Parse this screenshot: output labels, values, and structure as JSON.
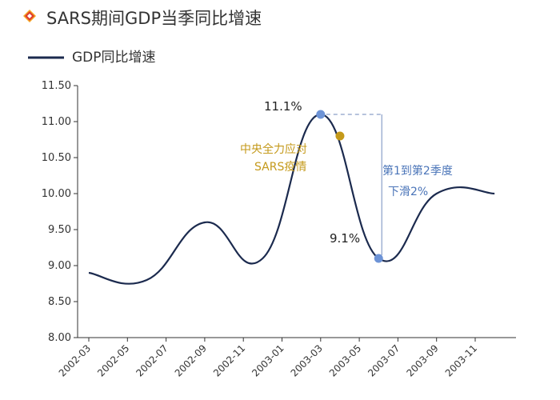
{
  "header": {
    "title": "SARS期间GDP当季同比增速",
    "legend_label": "GDP同比增速"
  },
  "annotations": {
    "peak_label": "11.1%",
    "trough_label": "9.1%",
    "event_line1": "中央全力应对",
    "event_line2": "SARS疫情",
    "decline_line1": "第1到第2季度",
    "decline_line2": "下滑2%"
  },
  "colors": {
    "series": "#1b2a4e",
    "marker_blue": "#6d93d6",
    "marker_gold": "#c4991a",
    "annotation_blue": "#4a74b8",
    "logo_red": "#e03c2d",
    "logo_orange": "#f5a623"
  },
  "chart_data": {
    "type": "line",
    "title": "SARS期间GDP当季同比增速",
    "series": [
      {
        "name": "GDP同比增速",
        "x": [
          "2002-03",
          "2002-06",
          "2002-09",
          "2002-12",
          "2003-03",
          "2003-06",
          "2003-09",
          "2003-12"
        ],
        "values": [
          8.9,
          8.8,
          9.6,
          9.1,
          11.1,
          9.1,
          10.0,
          10.0
        ]
      }
    ],
    "x_ticks": [
      "2002-03",
      "2002-05",
      "2002-07",
      "2002-09",
      "2002-11",
      "2003-01",
      "2003-03",
      "2003-05",
      "2003-07",
      "2003-09",
      "2003-11"
    ],
    "y_ticks": [
      "8.00",
      "8.50",
      "9.00",
      "9.50",
      "10.00",
      "10.50",
      "11.00",
      "11.50"
    ],
    "ylim": [
      8.0,
      11.5
    ],
    "xlim": [
      "2002-03",
      "2003-12"
    ],
    "grid": false,
    "legend_position": "top-left",
    "highlighted_points": [
      {
        "x": "2003-03",
        "y": 11.1,
        "label": "11.1%"
      },
      {
        "x": "2003-06",
        "y": 9.1,
        "label": "9.1%"
      }
    ],
    "event_point": {
      "x": "2003-04",
      "y": 10.8
    }
  }
}
